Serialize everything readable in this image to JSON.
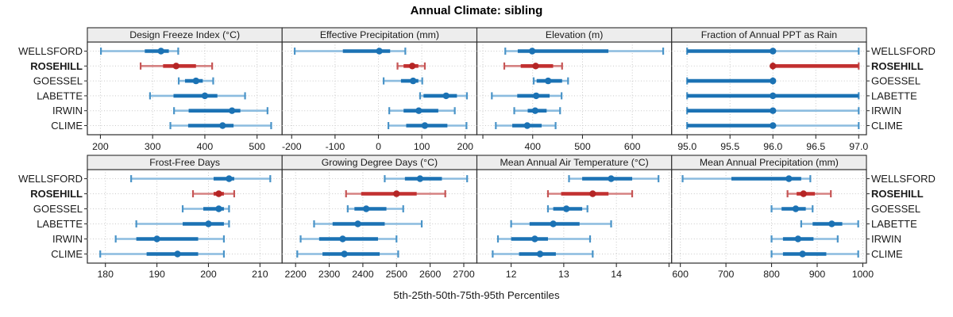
{
  "title": "Annual Climate: sibling",
  "caption": "5th-25th-50th-75th-95th Percentiles",
  "colors": {
    "header_bg": "#ededed",
    "grid": "#c9c9c9",
    "border": "#2b2b2b",
    "text": "#1a1a1a",
    "blue": {
      "dot": "#1b72b4",
      "band": "#1b72b4",
      "whisker": "#8bbcdf",
      "cap": "#4a94c8"
    },
    "red": {
      "dot": "#b52525",
      "band": "#c23030",
      "whisker": "#d58282",
      "cap": "#c65555"
    }
  },
  "chart_data": {
    "type": "dotplot",
    "percentile_labels": [
      "5th",
      "25th",
      "50th",
      "75th",
      "95th"
    ],
    "stations": [
      "WELLSFORD",
      "ROSEHILL",
      "GOESSEL",
      "LABETTE",
      "IRWIN",
      "CLIME"
    ],
    "highlight": "ROSEHILL",
    "legend_note": "values per station are [5th,25th,50th,75th,95th] percentiles",
    "rows": [
      {
        "panels": [
          {
            "title": "Design Freeze Index (°C)",
            "xlim": [
              175,
              548
            ],
            "ticks": [
              {
                "v": 200,
                "label": "200"
              },
              {
                "v": 300,
                "label": "300"
              },
              {
                "v": 400,
                "label": "400"
              },
              {
                "v": 500,
                "label": "500"
              }
            ],
            "values": [
              [
                201,
                285,
                316,
                331,
                349
              ],
              [
                277,
                320,
                345,
                383,
                414
              ],
              [
                350,
                362,
                383,
                396,
                416
              ],
              [
                295,
                340,
                400,
                424,
                477
              ],
              [
                341,
                369,
                452,
                468,
                520
              ],
              [
                334,
                368,
                434,
                455,
                527
              ]
            ]
          },
          {
            "title": "Effective Precipitation (mm)",
            "xlim": [
              -222,
              227
            ],
            "ticks": [
              {
                "v": -200,
                "label": "-200"
              },
              {
                "v": -100,
                "label": "-100"
              },
              {
                "v": 0,
                "label": "0"
              },
              {
                "v": 100,
                "label": "100"
              },
              {
                "v": 200,
                "label": "200"
              }
            ],
            "values": [
              [
                -193,
                -82,
                2,
                27,
                62
              ],
              [
                44,
                58,
                78,
                92,
                107
              ],
              [
                12,
                52,
                80,
                92,
                101
              ],
              [
                96,
                104,
                156,
                181,
                204
              ],
              [
                25,
                58,
                93,
                138,
                176
              ],
              [
                23,
                64,
                107,
                159,
                203
              ]
            ]
          },
          {
            "title": "Elevation (m)",
            "xlim": [
              288,
              679
            ],
            "ticks": [
              {
                "v": 300,
                "label": ""
              },
              {
                "v": 400,
                "label": "400"
              },
              {
                "v": 500,
                "label": "500"
              },
              {
                "v": 600,
                "label": "600"
              }
            ],
            "values": [
              [
                345,
                370,
                399,
                552,
                662
              ],
              [
                343,
                376,
                406,
                441,
                459
              ],
              [
                402,
                408,
                431,
                459,
                471
              ],
              [
                318,
                369,
                407,
                434,
                458
              ],
              [
                363,
                390,
                405,
                428,
                455
              ],
              [
                326,
                359,
                389,
                418,
                446
              ]
            ]
          },
          {
            "title": "Fraction of Annual PPT as Rain",
            "xlim": [
              94.82,
              97.09
            ],
            "ticks": [
              {
                "v": 95.0,
                "label": "95.0"
              },
              {
                "v": 95.5,
                "label": "95.5"
              },
              {
                "v": 96.0,
                "label": "96.0"
              },
              {
                "v": 96.5,
                "label": "96.5"
              },
              {
                "v": 97.0,
                "label": "97.0"
              }
            ],
            "values": [
              [
                95,
                95,
                96,
                96,
                97
              ],
              [
                96,
                96,
                96,
                97,
                97
              ],
              [
                95,
                95,
                96,
                96,
                96
              ],
              [
                95,
                95,
                96,
                97,
                97
              ],
              [
                95,
                95,
                96,
                96,
                97
              ],
              [
                95,
                95,
                96,
                96,
                97
              ]
            ]
          }
        ]
      },
      {
        "panels": [
          {
            "title": "Frost-Free Days",
            "xlim": [
              176.5,
              214.3
            ],
            "ticks": [
              {
                "v": 180,
                "label": "180"
              },
              {
                "v": 190,
                "label": "190"
              },
              {
                "v": 200,
                "label": "200"
              },
              {
                "v": 210,
                "label": "210"
              }
            ],
            "values": [
              [
                185,
                201,
                204,
                205,
                212
              ],
              [
                197,
                201,
                202,
                203,
                205
              ],
              [
                195,
                199,
                202,
                203,
                204
              ],
              [
                186,
                195,
                200,
                203,
                204
              ],
              [
                182,
                186,
                190,
                198,
                203
              ],
              [
                179,
                188,
                194,
                198,
                203
              ]
            ]
          },
          {
            "title": "Growing Degree Days (°C)",
            "xlim": [
              2160,
              2739
            ],
            "ticks": [
              {
                "v": 2200,
                "label": "2200"
              },
              {
                "v": 2300,
                "label": "2300"
              },
              {
                "v": 2400,
                "label": "2400"
              },
              {
                "v": 2500,
                "label": "2500"
              },
              {
                "v": 2600,
                "label": "2600"
              },
              {
                "v": 2700,
                "label": "2700"
              }
            ],
            "values": [
              [
                2465,
                2525,
                2570,
                2635,
                2710
              ],
              [
                2350,
                2395,
                2500,
                2560,
                2645
              ],
              [
                2355,
                2375,
                2410,
                2470,
                2520
              ],
              [
                2255,
                2310,
                2385,
                2465,
                2575
              ],
              [
                2215,
                2270,
                2340,
                2445,
                2500
              ],
              [
                2205,
                2280,
                2345,
                2450,
                2505
              ]
            ]
          },
          {
            "title": "Mean Annual Air Temperature (°C)",
            "xlim": [
              11.35,
              15.05
            ],
            "ticks": [
              {
                "v": 12,
                "label": "12"
              },
              {
                "v": 13,
                "label": "13"
              },
              {
                "v": 14,
                "label": "14"
              },
              {
                "v": 15,
                "label": ""
              }
            ],
            "values": [
              [
                13.1,
                13.35,
                13.9,
                14.3,
                14.8
              ],
              [
                12.7,
                12.95,
                13.55,
                13.85,
                14.3
              ],
              [
                12.7,
                12.8,
                13.05,
                13.35,
                13.45
              ],
              [
                12.0,
                12.35,
                12.8,
                13.3,
                13.9
              ],
              [
                11.75,
                12.0,
                12.45,
                12.7,
                13.5
              ],
              [
                11.65,
                12.15,
                12.55,
                12.85,
                13.55
              ]
            ]
          },
          {
            "title": "Mean Annual Precipitation (mm)",
            "xlim": [
              581,
              1008
            ],
            "ticks": [
              {
                "v": 600,
                "label": "600"
              },
              {
                "v": 700,
                "label": "700"
              },
              {
                "v": 800,
                "label": "800"
              },
              {
                "v": 900,
                "label": "900"
              },
              {
                "v": 1000,
                "label": "1000"
              }
            ],
            "values": [
              [
                605,
                712,
                838,
                865,
                885
              ],
              [
                835,
                855,
                870,
                895,
                930
              ],
              [
                800,
                822,
                853,
                875,
                890
              ],
              [
                865,
                890,
                932,
                955,
                990
              ],
              [
                800,
                825,
                858,
                892,
                945
              ],
              [
                800,
                825,
                868,
                920,
                990
              ]
            ]
          }
        ]
      }
    ]
  }
}
